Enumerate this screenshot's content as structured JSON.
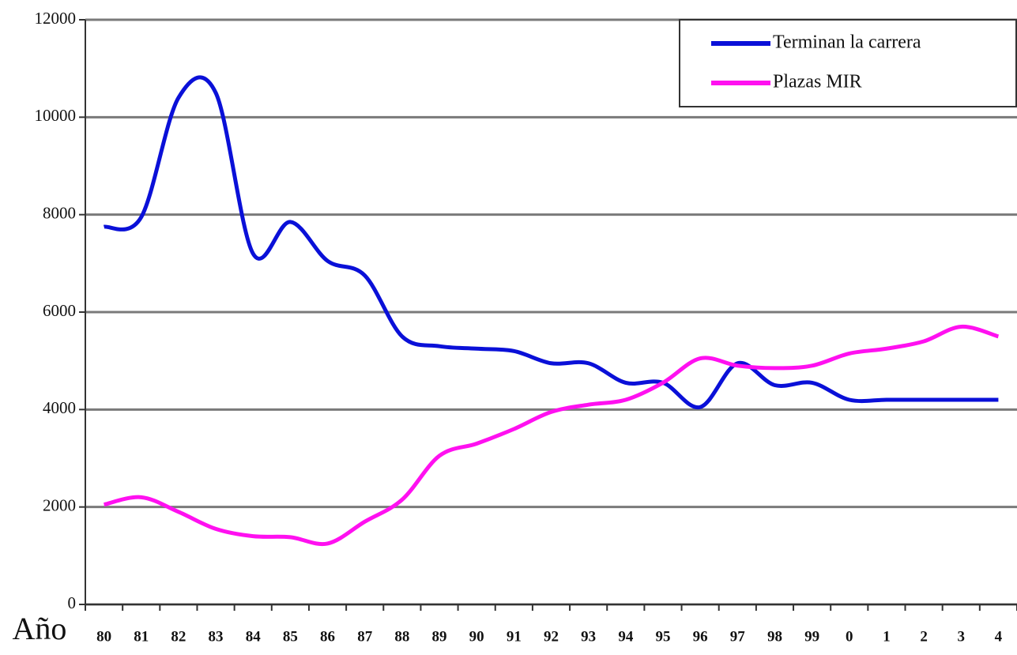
{
  "chart_data": {
    "type": "line",
    "x_label": "Año",
    "categories": [
      "80",
      "81",
      "82",
      "83",
      "84",
      "85",
      "86",
      "87",
      "88",
      "89",
      "90",
      "91",
      "92",
      "93",
      "94",
      "95",
      "96",
      "97",
      "98",
      "99",
      "0",
      "1",
      "2",
      "3",
      "4"
    ],
    "series": [
      {
        "name": "Terminan la carrera",
        "color": "#0a10d8",
        "values": [
          7750,
          7950,
          10400,
          10500,
          7200,
          7850,
          7050,
          6750,
          5500,
          5300,
          5250,
          5200,
          4950,
          4950,
          4550,
          4550,
          4050,
          4950,
          4500,
          4550,
          4200,
          4200,
          4200,
          4200,
          4200
        ]
      },
      {
        "name": "Plazas MIR",
        "color": "#ff10f0",
        "values": [
          2050,
          2200,
          1900,
          1550,
          1400,
          1380,
          1250,
          1700,
          2150,
          3050,
          3300,
          3600,
          3950,
          4100,
          4200,
          4550,
          5050,
          4900,
          4850,
          4900,
          5150,
          5250,
          5400,
          5700,
          5500
        ]
      }
    ],
    "ylim": [
      0,
      12000
    ],
    "yticks": [
      0,
      2000,
      4000,
      6000,
      8000,
      10000,
      12000
    ],
    "grid": true,
    "legend": "upper right"
  }
}
